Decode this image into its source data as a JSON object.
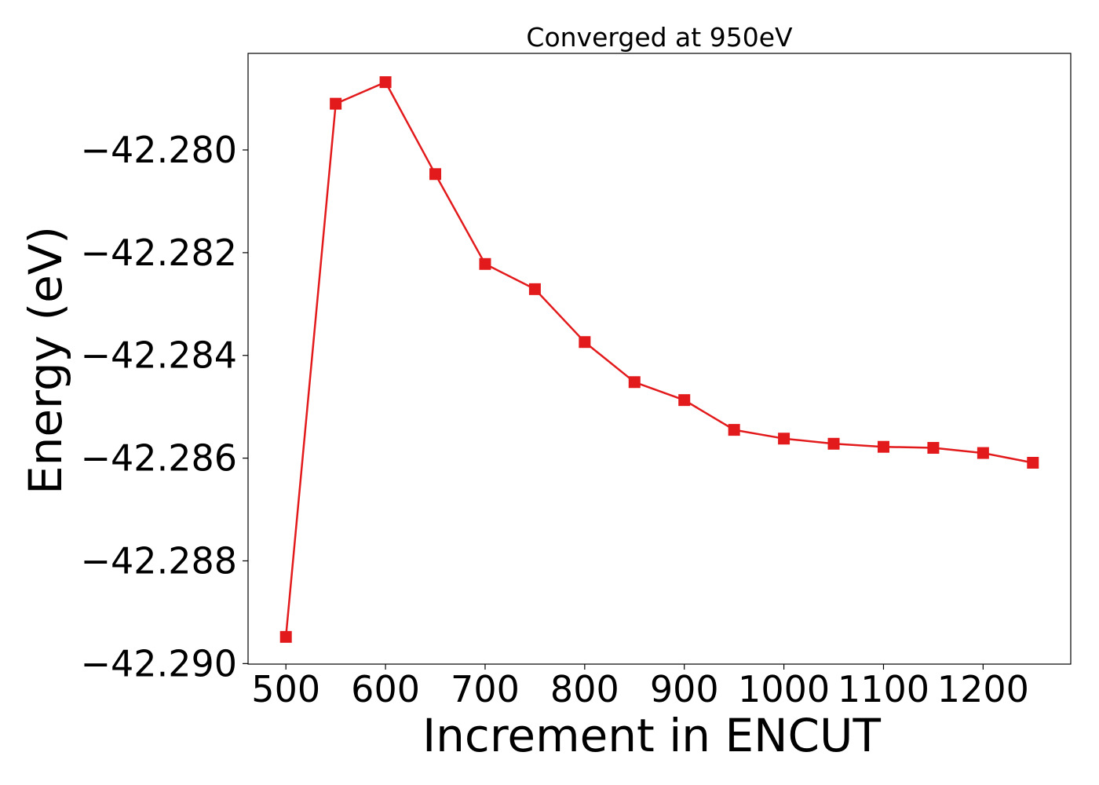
{
  "chart_data": {
    "type": "line",
    "title": "Converged at 950eV",
    "xlabel": "Increment in ENCUT",
    "ylabel": "Energy (eV)",
    "x": [
      500,
      550,
      600,
      650,
      700,
      750,
      800,
      850,
      900,
      950,
      1000,
      1050,
      1100,
      1150,
      1200,
      1250
    ],
    "series": [
      {
        "values": [
          -42.28948,
          -42.2791,
          -42.27868,
          -42.28047,
          -42.28222,
          -42.28271,
          -42.28374,
          -42.28452,
          -42.28487,
          -42.28545,
          -42.28562,
          -42.28572,
          -42.28578,
          -42.2858,
          -42.2859,
          -42.28609
        ],
        "color": "#e31a1c",
        "marker": "square"
      }
    ],
    "xlim": [
      462,
      1288
    ],
    "ylim": [
      -42.29001,
      -42.27812
    ],
    "xticks": [
      500,
      600,
      700,
      800,
      900,
      1000,
      1100,
      1200
    ],
    "xtick_labels": [
      "500",
      "600",
      "700",
      "800",
      "900",
      "1000",
      "1100",
      "1200"
    ],
    "yticks": [
      -42.29,
      -42.288,
      -42.286,
      -42.284,
      -42.282,
      -42.28
    ],
    "ytick_labels": [
      "−42.290",
      "−42.288",
      "−42.286",
      "−42.284",
      "−42.282",
      "−42.280"
    ],
    "grid": false,
    "legend": "none"
  }
}
